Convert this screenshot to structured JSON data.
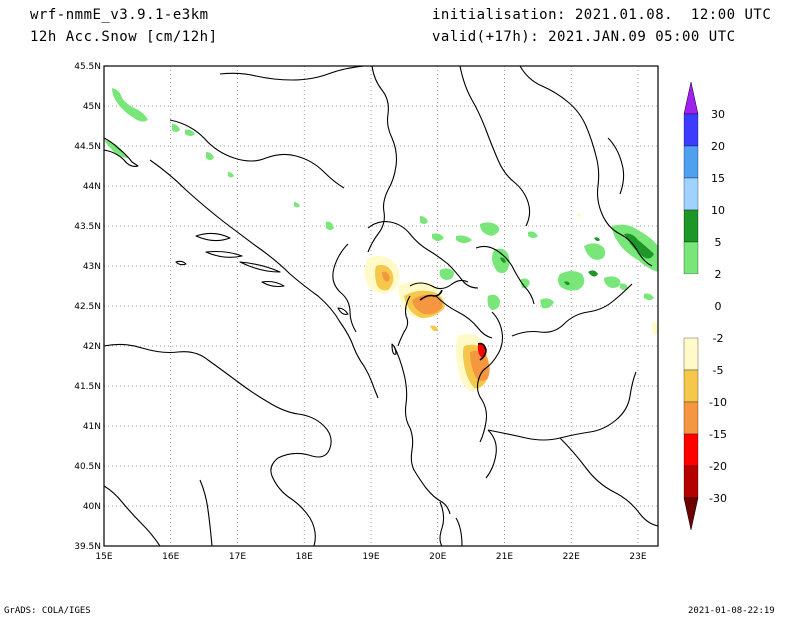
{
  "header": {
    "model": "wrf-nmmE_v3.9.1-e3km",
    "field": "12h Acc.Snow [cm/12h]",
    "init": "initialisation: 2021.01.08.  12:00 UTC",
    "valid": "valid(+17h): 2021.JAN.09 05:00 UTC"
  },
  "map": {
    "lat_ticks": [
      "45.5N",
      "45N",
      "44.5N",
      "44N",
      "43.5N",
      "43N",
      "42.5N",
      "42N",
      "41.5N",
      "41N",
      "40.5N",
      "40N",
      "39.5N"
    ],
    "lon_ticks": [
      "15E",
      "16E",
      "17E",
      "18E",
      "19E",
      "20E",
      "21E",
      "22E",
      "23E"
    ],
    "lat_range": [
      39.5,
      45.5
    ],
    "lon_range": [
      15.0,
      23.3
    ],
    "grid": "dotted"
  },
  "legend": {
    "labels": [
      "30",
      "20",
      "15",
      "10",
      "5",
      "2",
      "0",
      "-2",
      "-5",
      "-10",
      "-15",
      "-20",
      "-30"
    ],
    "colors": {
      "top_tri": "#a020f0",
      "bands": [
        "#3c3cff",
        "#50a0f0",
        "#a0d2ff",
        "#1e9628",
        "#78e678",
        "#ffffff",
        "#ffffff",
        "#fffac8",
        "#f5c84b",
        "#f59641",
        "#ff0000",
        "#b40000"
      ],
      "bottom_tri": "#6e0000"
    }
  },
  "footer": {
    "left": "GrADS: COLA/IGES",
    "right": "2021-01-08-22:19"
  }
}
